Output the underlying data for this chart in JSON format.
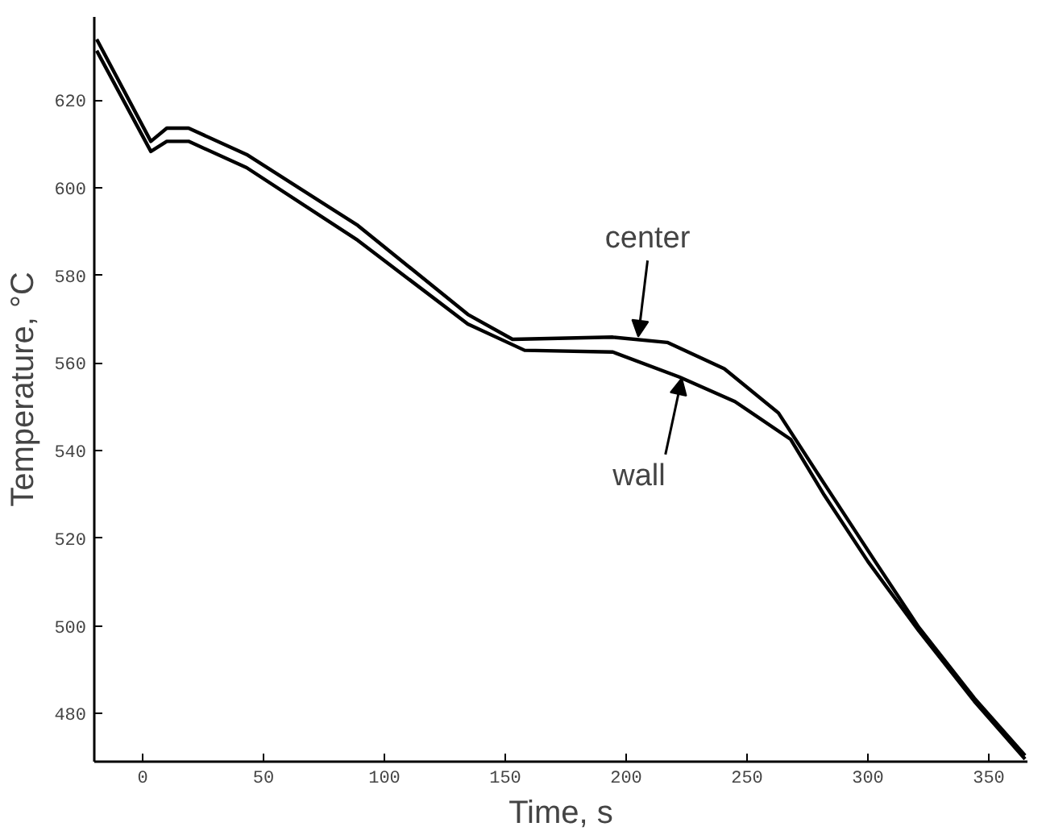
{
  "chart_data": {
    "type": "line",
    "xlabel": "Time, s",
    "ylabel": "Temperature, °C",
    "xlim": [
      -20,
      366
    ],
    "ylim": [
      469,
      639
    ],
    "xticks": [
      0,
      50,
      100,
      150,
      200,
      250,
      300,
      350
    ],
    "yticks": [
      480,
      500,
      520,
      540,
      560,
      580,
      600,
      620
    ],
    "grid": false,
    "marker": "none",
    "line_style": "solid",
    "series": [
      {
        "color": "#000000",
        "x": [
          -19,
          3.4,
          10,
          19,
          43,
          89,
          134.5,
          153,
          194.5,
          217,
          240.6,
          263,
          282,
          303,
          321,
          344,
          365
        ],
        "values": [
          633.9,
          610.6,
          613.6,
          613.6,
          607.6,
          591.4,
          571.1,
          565.4,
          565.9,
          564.7,
          558.7,
          548.6,
          532.4,
          514.7,
          499.7,
          483.5,
          470.4
        ]
      },
      {
        "color": "#000000",
        "x": [
          -19,
          3.4,
          10,
          19,
          43,
          89,
          134.5,
          158,
          194.5,
          222,
          245,
          268,
          282,
          300,
          321,
          344,
          365
        ],
        "values": [
          631.3,
          608.3,
          610.6,
          610.6,
          604.6,
          588,
          568.9,
          562.9,
          562.5,
          556.8,
          551.2,
          542.6,
          529.8,
          514.7,
          498.9,
          482.8,
          469.6
        ]
      }
    ],
    "annotations": [
      {
        "text": "center",
        "x": 205,
        "y": 566
      },
      {
        "text": "wall",
        "x": 223,
        "y": 556.5
      }
    ]
  }
}
